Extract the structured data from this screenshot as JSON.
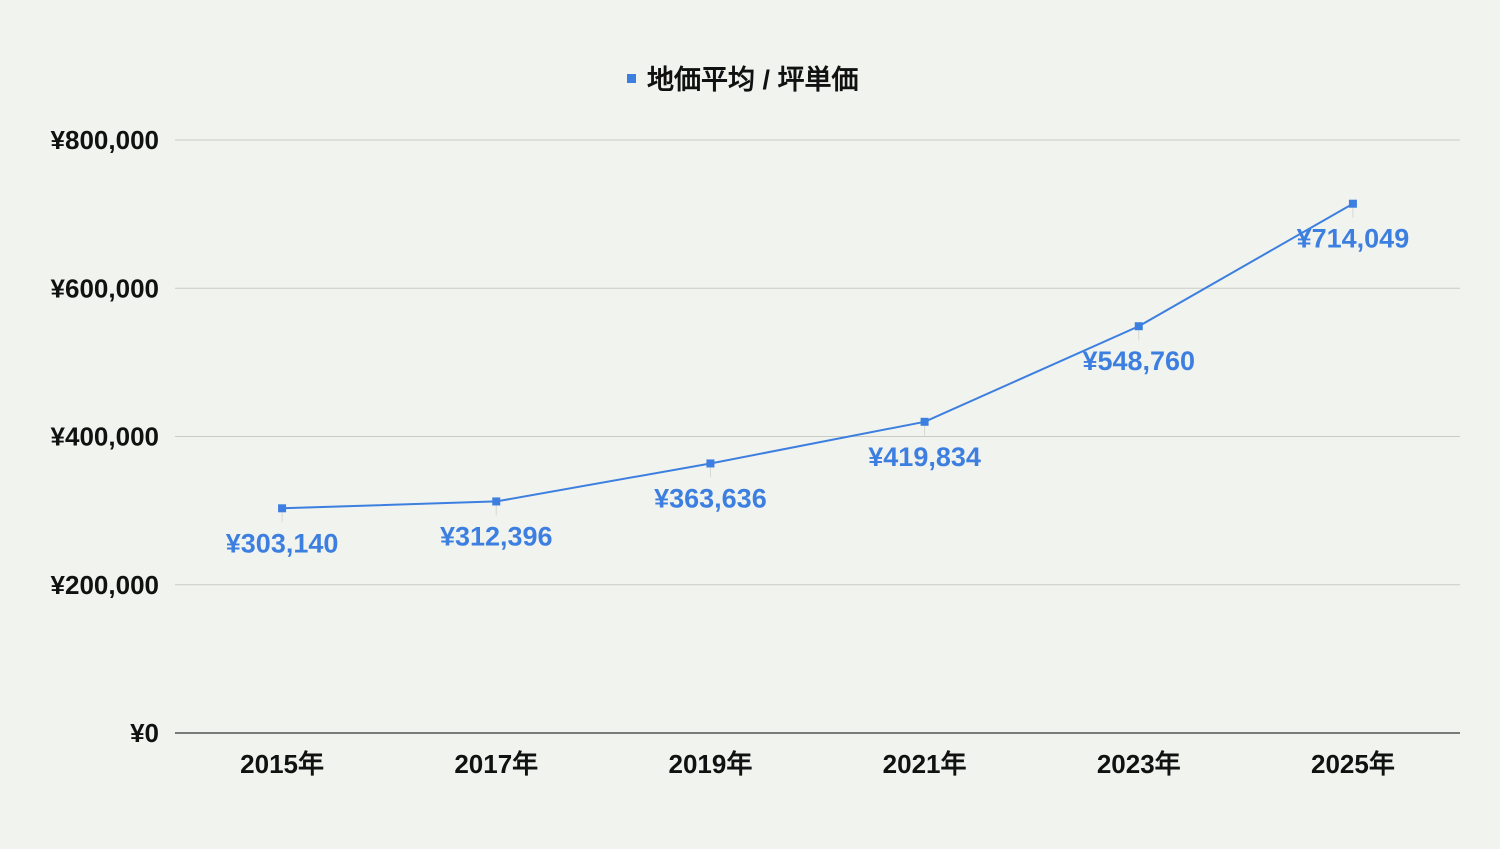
{
  "chart_data": {
    "type": "line",
    "title": "",
    "xlabel": "",
    "ylabel": "",
    "categories": [
      "2015年",
      "2017年",
      "2019年",
      "2021年",
      "2023年",
      "2025年"
    ],
    "series": [
      {
        "name": "地価平均 / 坪単価",
        "values": [
          303140,
          312396,
          363636,
          419834,
          548760,
          714049
        ],
        "data_labels": [
          "¥303,140",
          "¥312,396",
          "¥363,636",
          "¥419,834",
          "¥548,760",
          "¥714,049"
        ]
      }
    ],
    "ylim": [
      0,
      800000
    ],
    "y_ticks": [
      0,
      200000,
      400000,
      600000,
      800000
    ],
    "y_tick_labels": [
      "¥0",
      "¥200,000",
      "¥400,000",
      "¥600,000",
      "¥800,000"
    ],
    "grid": true,
    "legend_position": "top-center",
    "colors": {
      "series": "#3d7fe0",
      "grid": "#c9ccc6",
      "axis": "#333333",
      "background": "#f1f3ee"
    }
  }
}
